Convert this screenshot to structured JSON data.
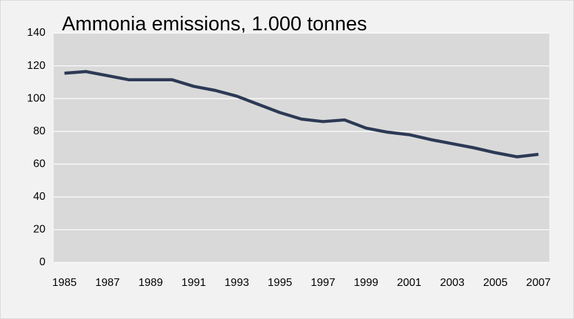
{
  "chart_data": {
    "type": "line",
    "title": "Ammonia emissions, 1.000 tonnes",
    "categories": [
      "1985",
      null,
      "1987",
      null,
      "1989",
      null,
      "1991",
      null,
      "1993",
      null,
      "1995",
      null,
      "1997",
      null,
      "1999",
      null,
      "2001",
      null,
      "2003",
      null,
      "2005",
      null,
      "2007"
    ],
    "series": [
      {
        "name": "Ammonia emissions",
        "color": "#2d3a55",
        "values": [
          115.5,
          116.5,
          114,
          111.5,
          111.5,
          111.5,
          107.5,
          105,
          101.5,
          96.5,
          91.5,
          87.5,
          86,
          87,
          82,
          79.5,
          78,
          75,
          72.5,
          70,
          67,
          64.5,
          66
        ]
      }
    ],
    "ylim": [
      0,
      140
    ],
    "yticks": [
      0,
      20,
      40,
      60,
      80,
      100,
      120,
      140
    ],
    "grid": true
  }
}
